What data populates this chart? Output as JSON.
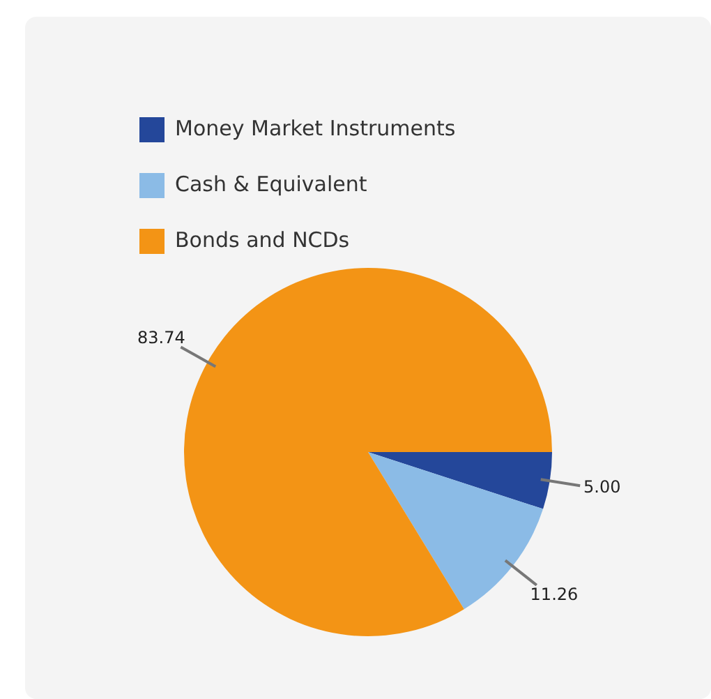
{
  "chart_data": {
    "type": "pie",
    "categories": [
      "Money Market Instruments",
      "Cash & Equivalent",
      "Bonds and NCDs"
    ],
    "values": [
      5.0,
      11.26,
      83.74
    ],
    "colors": [
      "#24479a",
      "#8bbbe6",
      "#f39415"
    ],
    "value_labels": [
      "5.00",
      "11.26",
      "83.74"
    ],
    "legend": "top left"
  }
}
